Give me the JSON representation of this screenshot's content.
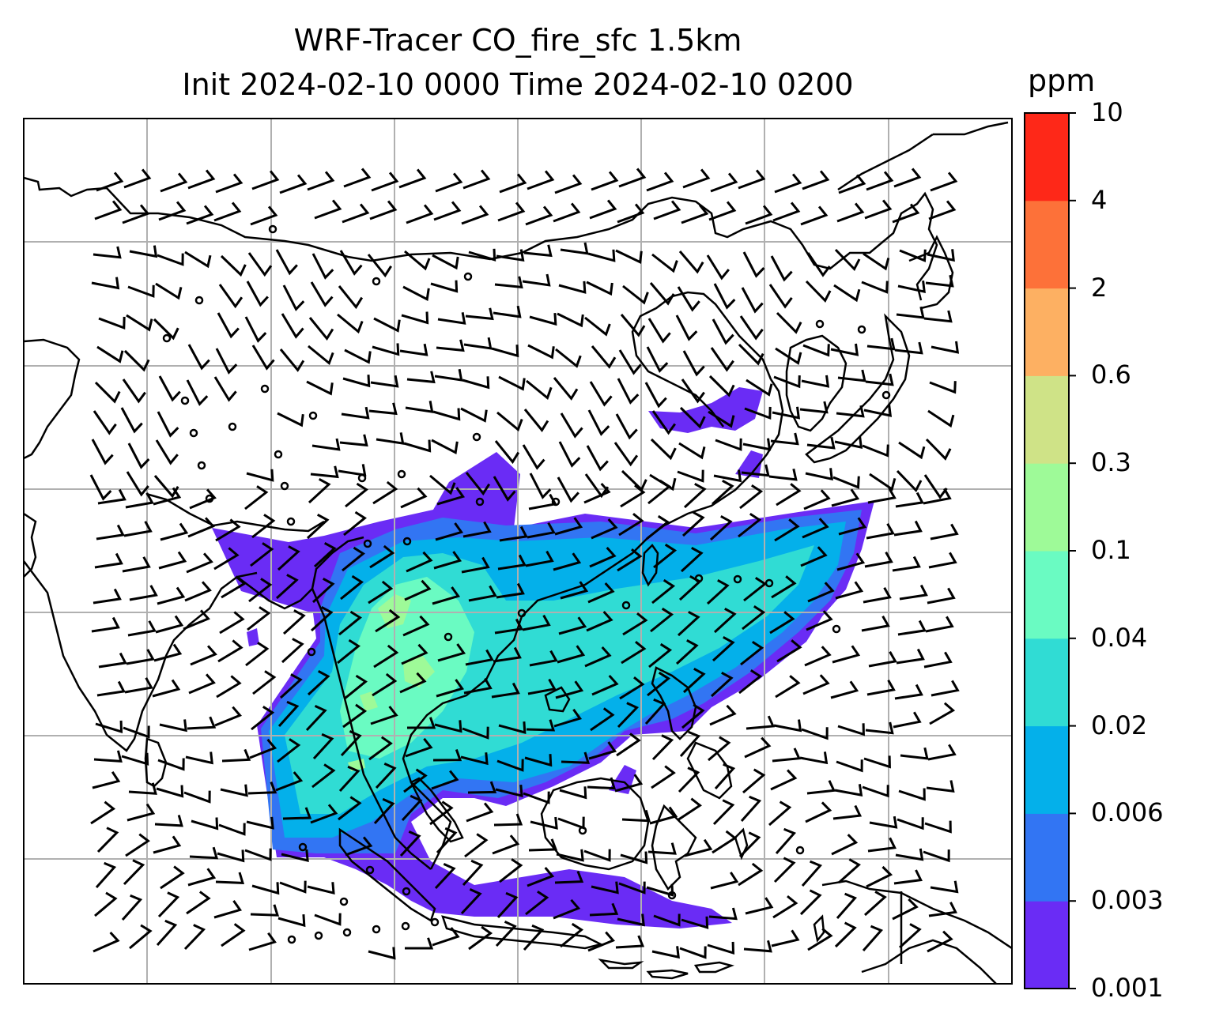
{
  "title_line1": "WRF-Tracer CO_fire_sfc 1.5km",
  "title_line2": "Init 2024-02-10 0000 Time 2024-02-10 0200",
  "colorbar": {
    "unit": "ppm",
    "levels": [
      "0.001",
      "0.003",
      "0.006",
      "0.02",
      "0.04",
      "0.1",
      "0.3",
      "0.6",
      "2",
      "4",
      "10"
    ],
    "colors": [
      "#6a2cf5",
      "#3275f3",
      "#04b0ea",
      "#30dcd4",
      "#6afbc2",
      "#9efa98",
      "#cfe387",
      "#fdb062",
      "#fd7139",
      "#fe2818"
    ]
  },
  "map": {
    "background": "#ffffff",
    "grid_color": "#b0b0b0",
    "coast_color": "#000000",
    "symbols": [
      "wind-barb",
      "calm-circle"
    ]
  }
}
